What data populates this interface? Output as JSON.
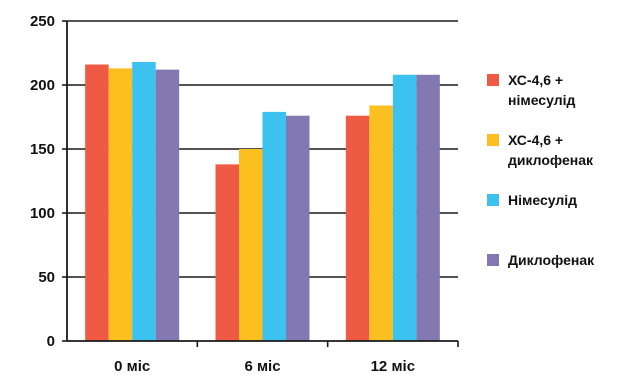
{
  "chart_data": {
    "type": "bar",
    "title": "",
    "xlabel": "",
    "ylabel": "",
    "ylim": [
      0,
      250
    ],
    "yticks": [
      0,
      50,
      100,
      150,
      200,
      250
    ],
    "grid": "horizontal",
    "legend_position": "right",
    "categories": [
      "0 міс",
      "6 міс",
      "12 міс"
    ],
    "series": [
      {
        "name": "ХС-4,6 + німесулід",
        "label_lines": [
          "ХС-4,6 +",
          "німесулід"
        ],
        "color": "#ef5a45",
        "values": [
          216,
          138,
          176
        ]
      },
      {
        "name": "ХС-4,6 + диклофенак",
        "label_lines": [
          "ХС-4,6 +",
          "диклофенак"
        ],
        "color": "#fbbf20",
        "values": [
          213,
          150,
          184
        ]
      },
      {
        "name": "Німесулід",
        "label_lines": [
          "Німесулід"
        ],
        "color": "#3bc2ee",
        "values": [
          218,
          179,
          208
        ]
      },
      {
        "name": "Диклофенак",
        "label_lines": [
          "Диклофенак"
        ],
        "color": "#8378b2",
        "values": [
          212,
          176,
          208
        ]
      }
    ]
  }
}
